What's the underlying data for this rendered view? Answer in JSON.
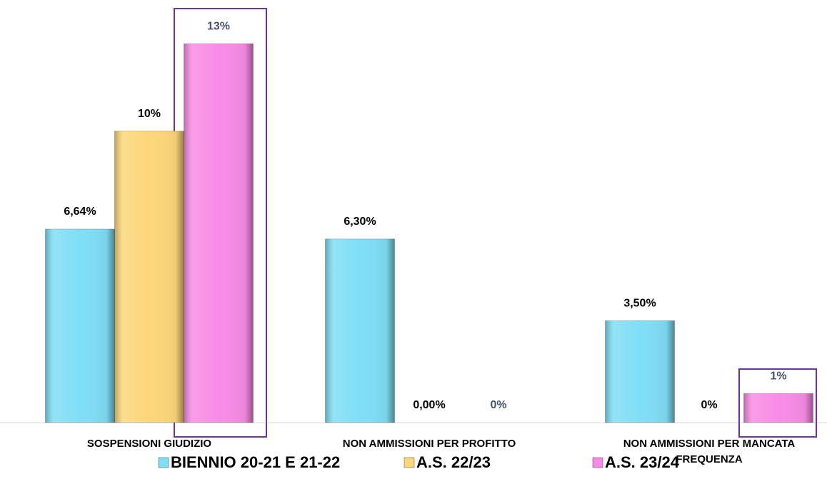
{
  "chart_data": {
    "type": "bar",
    "categories": [
      "SOSPENSIONI GIUDIZIO",
      "NON AMMISSIONI PER PROFITTO",
      "NON AMMISSIONI PER MANCATA FREQUENZA"
    ],
    "series": [
      {
        "name": "BIENNIO 20-21 E 21-22",
        "color": "#7fdef5",
        "values": [
          6.64,
          6.3,
          3.5
        ],
        "value_labels": [
          "6,64%",
          "6,30%",
          "3,50%"
        ],
        "label_color": "#000000"
      },
      {
        "name": "A.S. 22/23",
        "color": "#fcd67a",
        "values": [
          10,
          0,
          0
        ],
        "value_labels": [
          "10%",
          "0,00%",
          "0%"
        ],
        "label_color": "#000000"
      },
      {
        "name": "A.S. 23/24",
        "color": "#f98be6",
        "values": [
          13,
          0,
          1
        ],
        "value_labels": [
          "13%",
          "0%",
          "1%"
        ],
        "label_color": "#44546a"
      }
    ],
    "ylim": [
      0,
      14.5
    ]
  }
}
